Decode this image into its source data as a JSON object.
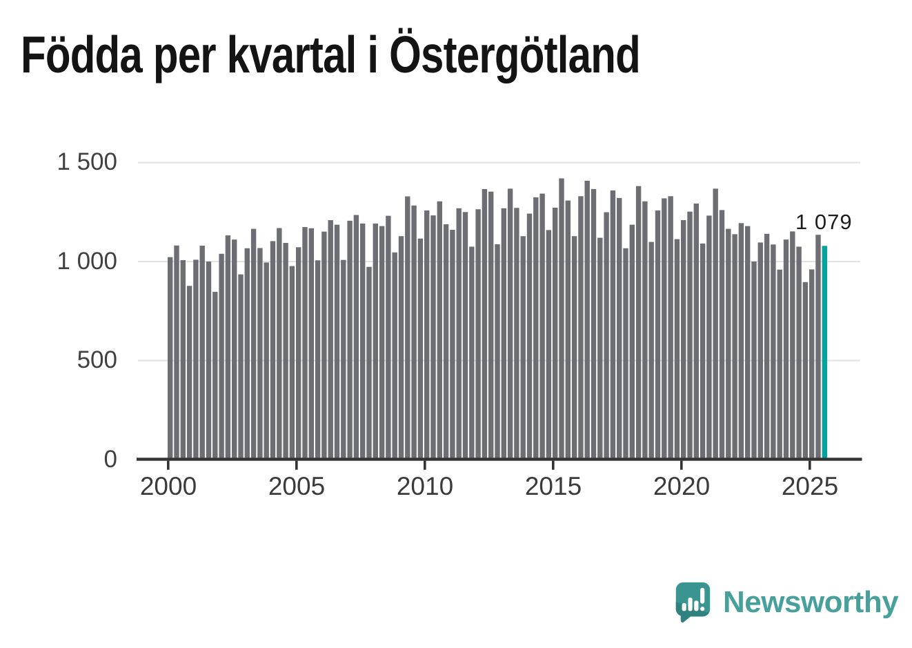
{
  "title": "Födda per kvartal i Östergötland",
  "logo": {
    "text": "Newsworthy"
  },
  "colors": {
    "bar": "#6d6d74",
    "highlight": "#00a39e",
    "grid": "#e3e3e3",
    "axis": "#333333",
    "tick_label": "#3f3f3f",
    "title": "#141414",
    "annotation": "#1d1d1d",
    "logo_teal": "#48a09b",
    "logo_icon": "#3a948f",
    "logo_icon_dark": "#2f827e"
  },
  "chart_data": {
    "type": "bar",
    "title": "Födda per kvartal i Östergötland",
    "xlabel": "",
    "ylabel": "",
    "frequency": "quarterly",
    "x_start": "2000-Q1",
    "x_end": "2025-Q3",
    "ylim": [
      0,
      1500
    ],
    "grid": "horizontal",
    "legend": "none",
    "y_ticks": [
      0,
      500,
      1000,
      1500
    ],
    "y_tick_labels": [
      "0",
      "500",
      "1 000",
      "1 500"
    ],
    "x_tick_labels": [
      "2000",
      "2005",
      "2010",
      "2015",
      "2020",
      "2025"
    ],
    "highlight_index": 102,
    "highlight_value": 1079,
    "highlight_value_label": "1 079",
    "bar_color": "#6d6d74",
    "highlight_color": "#00a39e",
    "values": [
      1022,
      1081,
      1007,
      877,
      1009,
      1080,
      1000,
      847,
      1039,
      1132,
      1111,
      935,
      1067,
      1165,
      1068,
      995,
      1103,
      1169,
      1094,
      977,
      1072,
      1174,
      1168,
      1006,
      1151,
      1209,
      1186,
      1008,
      1206,
      1235,
      1192,
      973,
      1192,
      1179,
      1231,
      1046,
      1128,
      1329,
      1283,
      1116,
      1258,
      1233,
      1304,
      1188,
      1160,
      1269,
      1250,
      1075,
      1264,
      1366,
      1353,
      1087,
      1269,
      1368,
      1271,
      1128,
      1242,
      1324,
      1343,
      1159,
      1272,
      1420,
      1308,
      1128,
      1330,
      1408,
      1366,
      1120,
      1249,
      1359,
      1321,
      1067,
      1186,
      1381,
      1304,
      1099,
      1258,
      1319,
      1330,
      1113,
      1209,
      1252,
      1293,
      1091,
      1232,
      1368,
      1260,
      1165,
      1138,
      1194,
      1179,
      1000,
      1096,
      1140,
      1086,
      959,
      1111,
      1152,
      1075,
      896,
      960,
      1135,
      1079
    ]
  }
}
